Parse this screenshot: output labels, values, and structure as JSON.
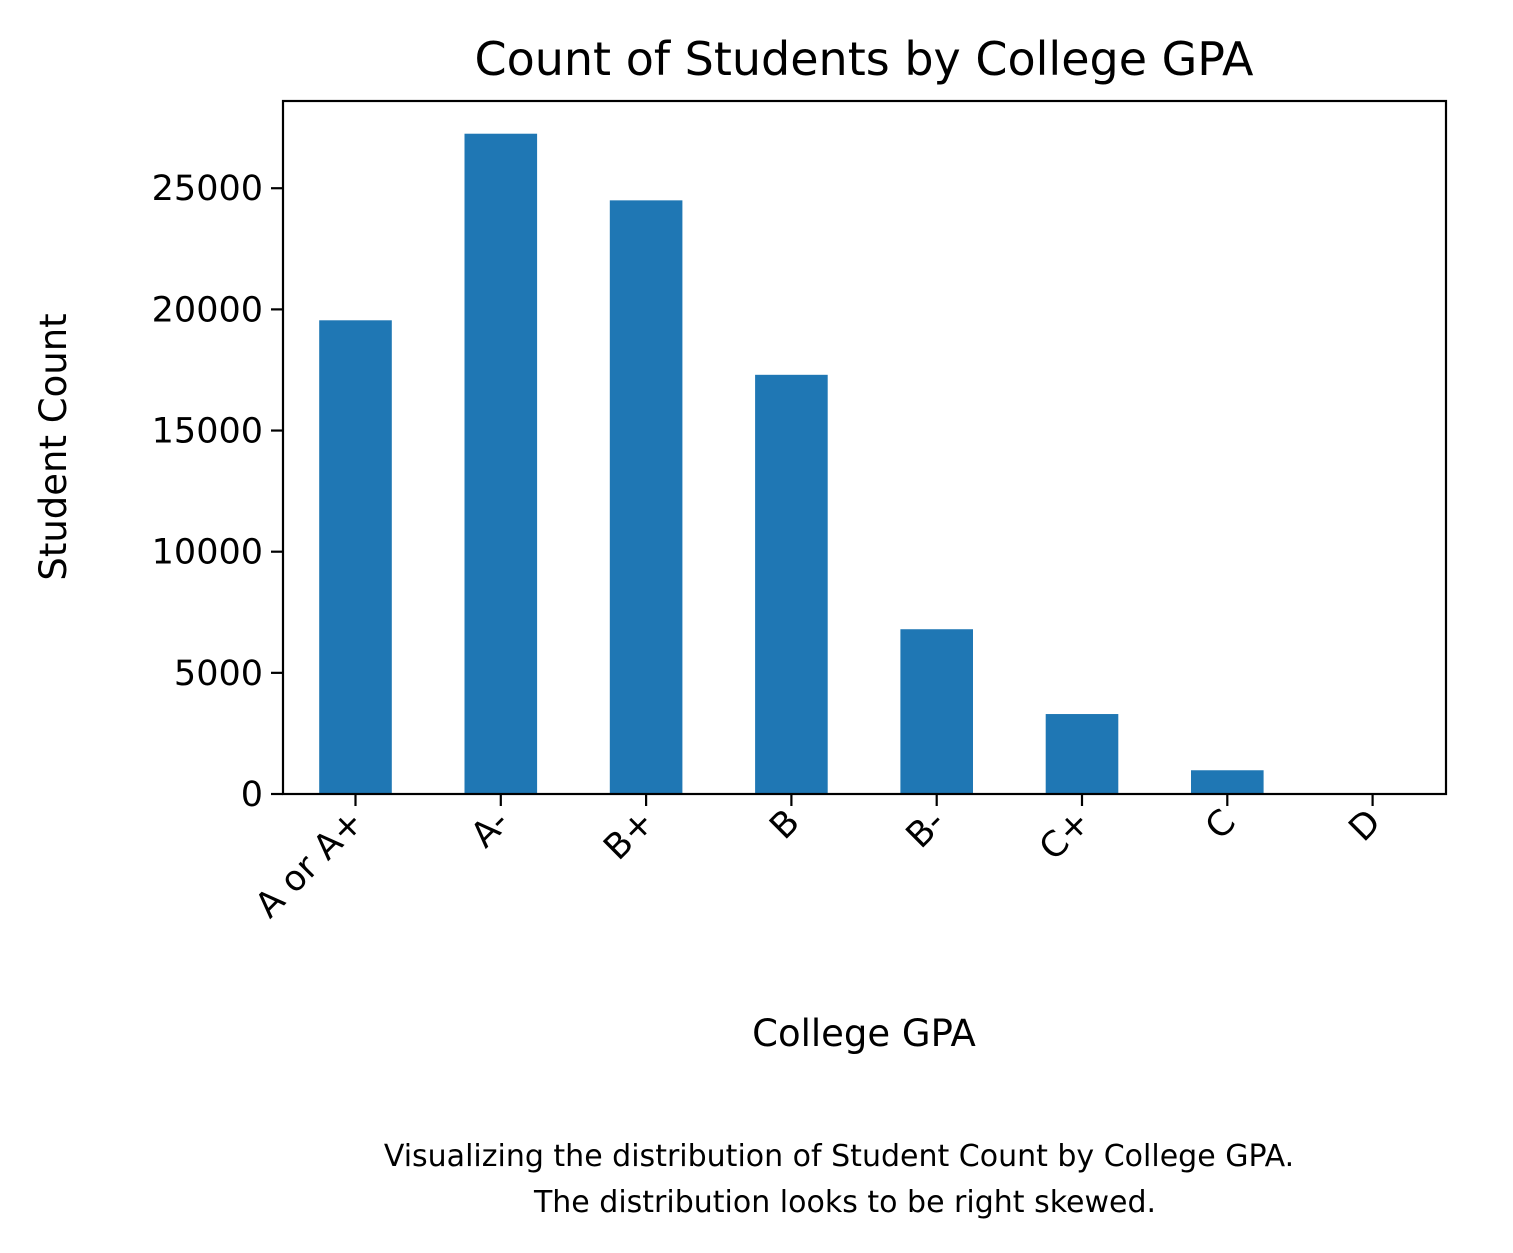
{
  "chart_data": {
    "type": "bar",
    "title": "Count of Students by College GPA",
    "xlabel": "College GPA",
    "ylabel": "Student Count",
    "categories": [
      "A or A+",
      "A-",
      "B+",
      "B",
      "B-",
      "C+",
      "C",
      "D"
    ],
    "values": [
      19550,
      27250,
      24500,
      17300,
      6800,
      3300,
      980,
      30
    ],
    "ylim": [
      0,
      28600
    ],
    "yticks": [
      0,
      5000,
      10000,
      15000,
      20000,
      25000
    ],
    "ytick_labels": [
      "0",
      "5000",
      "10000",
      "15000",
      "20000",
      "25000"
    ],
    "xtick_rotation_deg": 45,
    "grid": false,
    "legend": "none",
    "bar_color": "#1f77b4",
    "caption": [
      "Visualizing the distribution of Student Count by College GPA.",
      "The distribution looks to be right skewed."
    ]
  }
}
